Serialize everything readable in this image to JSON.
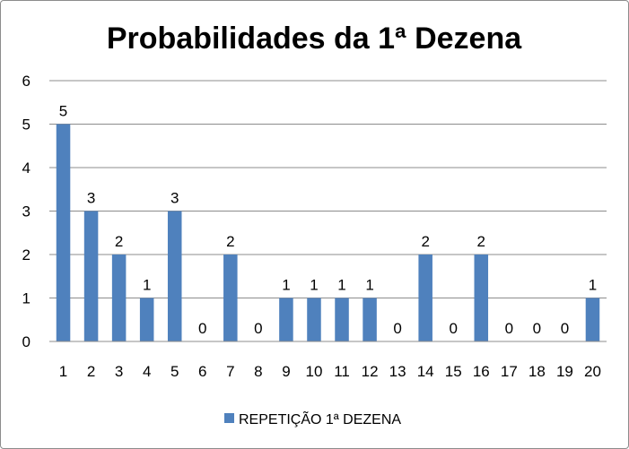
{
  "chart_data": {
    "type": "bar",
    "title": "Probabilidades da 1ª Dezena",
    "categories": [
      "1",
      "2",
      "3",
      "4",
      "5",
      "6",
      "7",
      "8",
      "9",
      "10",
      "11",
      "12",
      "13",
      "14",
      "15",
      "16",
      "17",
      "18",
      "19",
      "20"
    ],
    "series": [
      {
        "name": "REPETIÇÃO 1ª DEZENA",
        "values": [
          5,
          3,
          2,
          1,
          3,
          0,
          2,
          0,
          1,
          1,
          1,
          1,
          0,
          2,
          0,
          2,
          0,
          0,
          0,
          1
        ],
        "color": "#4f81bd"
      }
    ],
    "ylim": [
      0,
      6
    ],
    "yticks": [
      0,
      1,
      2,
      3,
      4,
      5,
      6
    ],
    "grid": true,
    "data_labels": true,
    "legend_position": "bottom"
  }
}
